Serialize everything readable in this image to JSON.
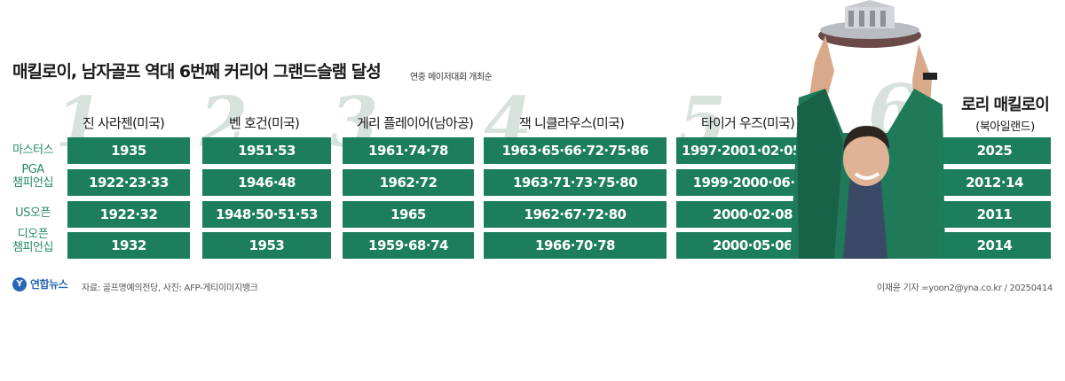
{
  "header": {
    "title": "매킬로이, 남자골프 역대 6번째 커리어 그랜드슬램 달성",
    "subtitle": "연중 메이저대회 개최순"
  },
  "row_labels": [
    "마스터스",
    "PGA\n챔피언십",
    "US오픈",
    "디오픈\n챔피언십"
  ],
  "players": [
    {
      "rank": "1",
      "name": "진 사라젠(미국)",
      "years": [
        "1935",
        "1922·23·33",
        "1922·32",
        "1932"
      ]
    },
    {
      "rank": "2",
      "name": "벤 호건(미국)",
      "years": [
        "1951·53",
        "1946·48",
        "1948·50·51·53",
        "1953"
      ]
    },
    {
      "rank": "3",
      "name": "게리 플레이어(남아공)",
      "years": [
        "1961·74·78",
        "1962·72",
        "1965",
        "1959·68·74"
      ]
    },
    {
      "rank": "4",
      "name": "잭 니클라우스(미국)",
      "years": [
        "1963·65·66·72·75·86",
        "1963·71·73·75·80",
        "1962·67·72·80",
        "1966·70·78"
      ]
    },
    {
      "rank": "5",
      "name": "타이거 우즈(미국)",
      "years": [
        "1997·2001·02·05·19",
        "1999·2000·06·07",
        "2000·02·08",
        "2000·05·06"
      ]
    },
    {
      "rank": "6",
      "name": "로리 매킬로이",
      "sub": "(북아일랜드)",
      "years": [
        "2025",
        "2012·14",
        "2011",
        "2014"
      ]
    }
  ],
  "footer": {
    "logo": "연합뉴스",
    "source": "자료: 골프명예의전당, 사진: AFP-게티이미지뱅크",
    "credit": "이재윤 기자 =yoon2@yna.co.kr / 20250414"
  },
  "colors": {
    "cell": "#1c7e5d",
    "label": "#2a8a6a",
    "number": "#d8e2dd"
  }
}
